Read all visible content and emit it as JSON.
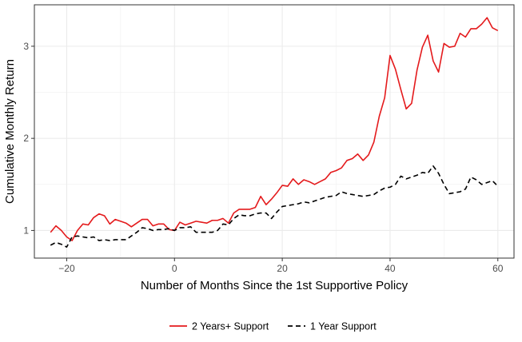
{
  "chart_data": {
    "type": "line",
    "title": "",
    "xlabel": "Number of Months Since the 1st Supportive Policy",
    "ylabel": "Cumulative Monthly Return",
    "xlim": [
      -26,
      63
    ],
    "ylim": [
      0.7,
      3.45
    ],
    "x_ticks": [
      -20,
      0,
      20,
      40,
      60
    ],
    "x_tick_labels": [
      "−20",
      "0",
      "20",
      "40",
      "60"
    ],
    "y_ticks": [
      1,
      2,
      3
    ],
    "y_tick_labels": [
      "1",
      "2",
      "3"
    ],
    "grid": true,
    "legend_position": "bottom",
    "series": [
      {
        "name": "2 Years+ Support",
        "color": "#e41a1c",
        "dash": "solid",
        "x": [
          -23,
          -22,
          -21,
          -20,
          -19,
          -18,
          -17,
          -16,
          -15,
          -14,
          -13,
          -12,
          -11,
          -10,
          -9,
          -8,
          -7,
          -6,
          -5,
          -4,
          -3,
          -2,
          -1,
          0,
          1,
          2,
          3,
          4,
          5,
          6,
          7,
          8,
          9,
          10,
          11,
          12,
          13,
          14,
          15,
          16,
          17,
          18,
          19,
          20,
          21,
          22,
          23,
          24,
          25,
          26,
          27,
          28,
          29,
          30,
          31,
          32,
          33,
          34,
          35,
          36,
          37,
          38,
          39,
          40,
          41,
          42,
          43,
          44,
          45,
          46,
          47,
          48,
          49,
          50,
          51,
          52,
          53,
          54,
          55,
          56,
          57,
          58,
          59,
          60
        ],
        "y": [
          0.98,
          1.05,
          1.0,
          0.93,
          0.89,
          1.0,
          1.07,
          1.06,
          1.14,
          1.18,
          1.16,
          1.07,
          1.12,
          1.1,
          1.08,
          1.04,
          1.08,
          1.12,
          1.12,
          1.05,
          1.07,
          1.07,
          1.01,
          1.0,
          1.09,
          1.06,
          1.08,
          1.1,
          1.09,
          1.08,
          1.11,
          1.11,
          1.13,
          1.08,
          1.19,
          1.23,
          1.23,
          1.23,
          1.25,
          1.37,
          1.28,
          1.34,
          1.41,
          1.49,
          1.48,
          1.56,
          1.5,
          1.55,
          1.53,
          1.5,
          1.53,
          1.56,
          1.63,
          1.65,
          1.68,
          1.76,
          1.78,
          1.83,
          1.76,
          1.82,
          1.96,
          2.24,
          2.44,
          2.9,
          2.75,
          2.53,
          2.32,
          2.38,
          2.74,
          2.99,
          3.12,
          2.84,
          2.72,
          3.03,
          2.99,
          3.0,
          3.14,
          3.1,
          3.19,
          3.19,
          3.24,
          3.31,
          3.2,
          3.17
        ]
      },
      {
        "name": "1 Year Support",
        "color": "#000000",
        "dash": "dashed",
        "x": [
          -23,
          -22,
          -21,
          -20,
          -19,
          -18,
          -17,
          -16,
          -15,
          -14,
          -13,
          -12,
          -11,
          -10,
          -9,
          -8,
          -7,
          -6,
          -5,
          -4,
          -3,
          -2,
          -1,
          0,
          1,
          2,
          3,
          4,
          5,
          6,
          7,
          8,
          9,
          10,
          11,
          12,
          13,
          14,
          15,
          16,
          17,
          18,
          19,
          20,
          21,
          22,
          23,
          24,
          25,
          26,
          27,
          28,
          29,
          30,
          31,
          32,
          33,
          34,
          35,
          36,
          37,
          38,
          39,
          40,
          41,
          42,
          43,
          44,
          45,
          46,
          47,
          48,
          49,
          50,
          51,
          52,
          53,
          54,
          55,
          56,
          57,
          58,
          59,
          60
        ],
        "y": [
          0.84,
          0.87,
          0.85,
          0.82,
          0.93,
          0.94,
          0.93,
          0.92,
          0.93,
          0.89,
          0.9,
          0.89,
          0.9,
          0.9,
          0.9,
          0.94,
          0.98,
          1.03,
          1.02,
          1.0,
          1.01,
          1.01,
          1.02,
          1.0,
          1.03,
          1.03,
          1.04,
          0.98,
          0.98,
          0.98,
          0.98,
          1.0,
          1.07,
          1.06,
          1.13,
          1.17,
          1.16,
          1.16,
          1.18,
          1.19,
          1.19,
          1.13,
          1.2,
          1.26,
          1.27,
          1.28,
          1.29,
          1.31,
          1.3,
          1.32,
          1.34,
          1.36,
          1.37,
          1.38,
          1.42,
          1.4,
          1.39,
          1.38,
          1.37,
          1.38,
          1.39,
          1.43,
          1.46,
          1.47,
          1.5,
          1.59,
          1.56,
          1.58,
          1.6,
          1.63,
          1.62,
          1.7,
          1.62,
          1.5,
          1.4,
          1.41,
          1.42,
          1.45,
          1.58,
          1.55,
          1.5,
          1.52,
          1.54,
          1.48
        ]
      }
    ]
  }
}
